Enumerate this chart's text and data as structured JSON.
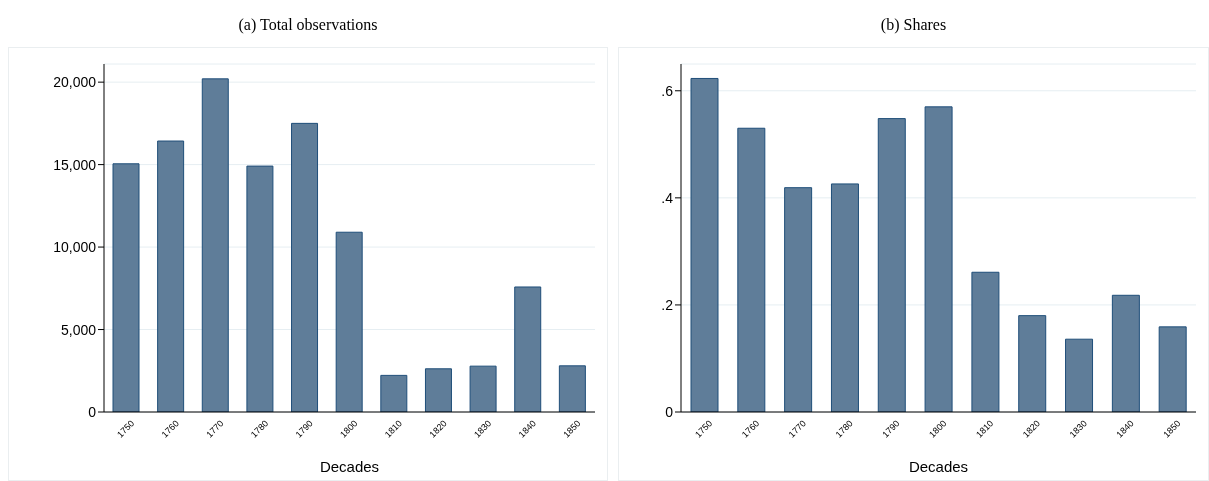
{
  "chart_data": [
    {
      "type": "bar",
      "title": "(a) Total observations",
      "xlabel": "Decades",
      "categories": [
        "1750",
        "1760",
        "1770",
        "1780",
        "1790",
        "1800",
        "1810",
        "1820",
        "1830",
        "1840",
        "1850"
      ],
      "values": [
        15050,
        16430,
        20200,
        14910,
        17500,
        10900,
        2220,
        2620,
        2780,
        7580,
        2800
      ],
      "color": "#5f7d99",
      "ylim": [
        0,
        21100
      ],
      "yticks": [
        0,
        {
          "value": 5000,
          "label": "5,000"
        },
        {
          "value": 10000,
          "label": "10,000"
        },
        {
          "value": 15000,
          "label": "15,000"
        },
        {
          "value": 20000,
          "label": "20,000"
        }
      ],
      "grid": "y"
    },
    {
      "type": "bar",
      "title": "(b) Shares",
      "xlabel": "Decades",
      "categories": [
        "1750",
        "1760",
        "1770",
        "1780",
        "1790",
        "1800",
        "1810",
        "1820",
        "1830",
        "1840",
        "1850"
      ],
      "values": [
        0.623,
        0.53,
        0.419,
        0.426,
        0.548,
        0.57,
        0.261,
        0.18,
        0.136,
        0.218,
        0.159
      ],
      "color": "#5f7d99",
      "ylim": [
        0,
        0.65
      ],
      "yticks": [
        0,
        {
          "value": 0.2,
          "label": ".2"
        },
        {
          "value": 0.4,
          "label": ".4"
        },
        {
          "value": 0.6,
          "label": ".6"
        }
      ],
      "grid": "y"
    }
  ]
}
